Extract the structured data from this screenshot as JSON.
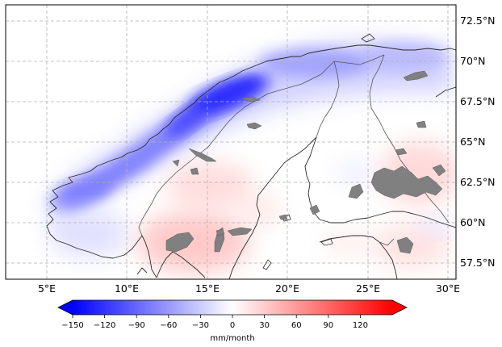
{
  "map": {
    "region": "Fennoscandia",
    "lon_range": [
      2.5,
      30.5
    ],
    "lat_range": [
      56.5,
      73.5
    ],
    "gridlines": true,
    "lon_ticks": [
      "5°E",
      "10°E",
      "15°E",
      "20°E",
      "25°E",
      "30°E"
    ],
    "lat_ticks": [
      "72.5°N",
      "70°N",
      "67.5°N",
      "65°N",
      "62.5°N",
      "60°N",
      "57.5°N"
    ],
    "land_outline_color": "#2b2b2b",
    "lake_color": "#808080",
    "field": {
      "description_units": "mm/month",
      "anomalies": [
        {
          "region": "Norwegian coast 67-69N",
          "value": -130
        },
        {
          "region": "Northern Norway coast",
          "value": -90
        },
        {
          "region": "Western Norway coast 61-63N",
          "value": -70
        },
        {
          "region": "Arctic coast Finnmark",
          "value": -50
        },
        {
          "region": "Southern Sweden",
          "value": 25
        },
        {
          "region": "Eastern Finland",
          "value": 15
        }
      ]
    }
  },
  "colorbar": {
    "ticks": [
      "−150",
      "−120",
      "−90",
      "−60",
      "−30",
      "0",
      "30",
      "60",
      "90",
      "120"
    ],
    "range": [
      -150,
      150
    ],
    "extend": "both",
    "cmap": "bwr",
    "label": "mm/month",
    "color_min": "#0000ff",
    "color_mid": "#ffffff",
    "color_max": "#ff0000"
  }
}
